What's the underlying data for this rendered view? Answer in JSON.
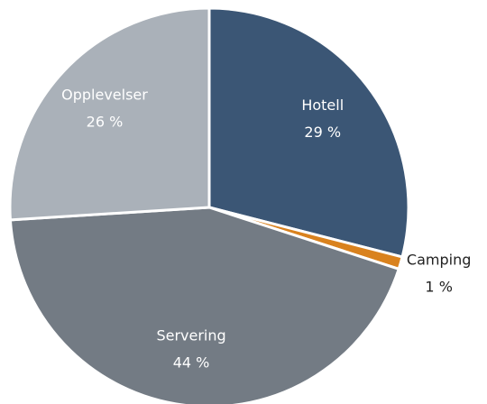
{
  "chart_data": {
    "type": "pie",
    "categories": [
      "Hotell",
      "Camping",
      "Servering",
      "Opplevelser"
    ],
    "values": [
      29,
      1,
      44,
      26
    ],
    "value_labels": [
      "29 %",
      "1 %",
      "44 %",
      "26 %"
    ],
    "colors": [
      "#3b5675",
      "#d9821e",
      "#737b84",
      "#aab1b9"
    ]
  }
}
